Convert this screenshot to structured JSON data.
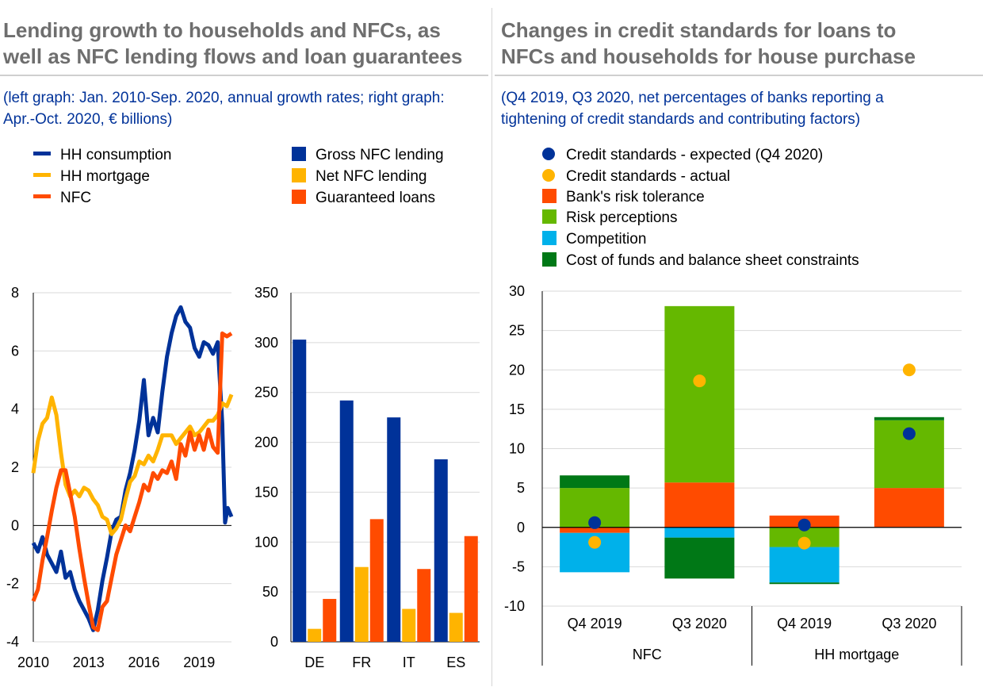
{
  "left_panel": {
    "title_line1": "Lending growth to households and NFCs, as",
    "title_line2": "well as NFC lending flows and loan guarantees",
    "subtitle_line1": "(left graph: Jan. 2010-Sep. 2020, annual growth rates; right graph:",
    "subtitle_line2": "Apr.-Oct. 2020, € billions)"
  },
  "right_panel": {
    "title_line1": "Changes in credit standards for loans to",
    "title_line2": "NFCs and households for house purchase",
    "subtitle_line1": "(Q4 2019, Q3 2020, net percentages of banks reporting a",
    "subtitle_line2": "tightening of credit standards and contributing factors)"
  },
  "colors": {
    "navy": "#003299",
    "yellow": "#ffb400",
    "orange": "#ff4b00",
    "lightgreen": "#65b800",
    "cyan": "#00b1ea",
    "darkgreen": "#007816"
  },
  "chart_data": [
    {
      "type": "line",
      "title": "Lending growth to households and NFCs",
      "xlabel": "",
      "ylabel": "",
      "ylim": [
        -4,
        8
      ],
      "xlim": [
        2010.0,
        2020.75
      ],
      "x_tick_labels": [
        "2010",
        "2013",
        "2016",
        "2019"
      ],
      "x_tick_values": [
        2010,
        2013,
        2016,
        2019
      ],
      "y_ticks": [
        -4,
        -2,
        0,
        2,
        4,
        6,
        8
      ],
      "legend": [
        "HH consumption",
        "HH mortgage",
        "NFC"
      ],
      "series": [
        {
          "name": "HH consumption",
          "color": "#003299",
          "x": [
            2010.0,
            2010.25,
            2010.5,
            2010.75,
            2011.0,
            2011.25,
            2011.5,
            2011.75,
            2012.0,
            2012.25,
            2012.5,
            2012.75,
            2013.0,
            2013.25,
            2013.5,
            2013.75,
            2014.0,
            2014.25,
            2014.5,
            2014.75,
            2015.0,
            2015.25,
            2015.5,
            2015.75,
            2016.0,
            2016.25,
            2016.5,
            2016.75,
            2017.0,
            2017.25,
            2017.5,
            2017.75,
            2018.0,
            2018.25,
            2018.5,
            2018.75,
            2019.0,
            2019.25,
            2019.5,
            2019.75,
            2020.0,
            2020.25,
            2020.4,
            2020.55,
            2020.75
          ],
          "values": [
            -0.6,
            -0.9,
            -0.4,
            -1.0,
            -1.3,
            -1.6,
            -0.9,
            -1.8,
            -1.6,
            -2.2,
            -2.6,
            -2.9,
            -3.2,
            -3.6,
            -2.9,
            -1.9,
            -1.1,
            -0.2,
            0.2,
            0.3,
            1.2,
            1.8,
            2.6,
            3.6,
            5.0,
            3.1,
            3.7,
            3.2,
            4.6,
            5.8,
            6.6,
            7.2,
            7.5,
            7.0,
            6.8,
            6.1,
            5.8,
            6.3,
            6.2,
            5.9,
            6.3,
            3.5,
            0.1,
            0.6,
            0.3
          ]
        },
        {
          "name": "HH mortgage",
          "color": "#ffb400",
          "x": [
            2010.0,
            2010.25,
            2010.5,
            2010.75,
            2011.0,
            2011.25,
            2011.5,
            2011.75,
            2012.0,
            2012.25,
            2012.5,
            2012.75,
            2013.0,
            2013.25,
            2013.5,
            2013.75,
            2014.0,
            2014.25,
            2014.5,
            2014.75,
            2015.0,
            2015.25,
            2015.5,
            2015.75,
            2016.0,
            2016.25,
            2016.5,
            2016.75,
            2017.0,
            2017.25,
            2017.5,
            2017.75,
            2018.0,
            2018.25,
            2018.5,
            2018.75,
            2019.0,
            2019.25,
            2019.5,
            2019.75,
            2020.0,
            2020.25,
            2020.5,
            2020.75
          ],
          "values": [
            1.8,
            2.9,
            3.5,
            3.7,
            4.4,
            3.8,
            2.5,
            1.4,
            1.0,
            1.2,
            1.0,
            1.3,
            1.2,
            0.9,
            0.7,
            0.3,
            0.2,
            -0.3,
            -0.1,
            0.2,
            0.9,
            1.5,
            1.7,
            2.2,
            2.1,
            2.4,
            2.2,
            2.6,
            3.1,
            3.1,
            3.1,
            2.8,
            3.0,
            3.2,
            3.4,
            3.1,
            3.2,
            3.4,
            3.6,
            3.6,
            3.8,
            4.2,
            4.1,
            4.5
          ]
        },
        {
          "name": "NFC",
          "color": "#ff4b00",
          "x": [
            2010.0,
            2010.25,
            2010.5,
            2010.75,
            2011.0,
            2011.25,
            2011.5,
            2011.75,
            2012.0,
            2012.25,
            2012.5,
            2012.75,
            2013.0,
            2013.25,
            2013.5,
            2013.75,
            2014.0,
            2014.25,
            2014.5,
            2014.75,
            2015.0,
            2015.25,
            2015.5,
            2015.75,
            2016.0,
            2016.25,
            2016.5,
            2016.75,
            2017.0,
            2017.25,
            2017.5,
            2017.75,
            2018.0,
            2018.25,
            2018.5,
            2018.75,
            2019.0,
            2019.25,
            2019.5,
            2019.75,
            2020.0,
            2020.25,
            2020.5,
            2020.75
          ],
          "values": [
            -2.6,
            -2.2,
            -1.2,
            -0.4,
            0.5,
            1.3,
            1.9,
            1.9,
            1.1,
            0.3,
            -0.8,
            -1.8,
            -2.7,
            -3.5,
            -3.6,
            -2.8,
            -2.6,
            -1.8,
            -1.0,
            -0.5,
            0.0,
            -0.2,
            0.3,
            0.8,
            1.4,
            1.2,
            1.8,
            1.6,
            1.9,
            1.8,
            2.2,
            1.6,
            2.8,
            2.4,
            3.2,
            2.6,
            3.1,
            2.6,
            3.3,
            2.7,
            2.5,
            6.6,
            6.5,
            6.6
          ]
        }
      ]
    },
    {
      "type": "bar",
      "title": "NFC lending flows and loan guarantees",
      "categories": [
        "DE",
        "FR",
        "IT",
        "ES"
      ],
      "ylim": [
        0,
        350
      ],
      "y_ticks": [
        0,
        50,
        100,
        150,
        200,
        250,
        300,
        350
      ],
      "series": [
        {
          "name": "Gross NFC lending",
          "color": "#003299",
          "values": [
            303,
            242,
            225,
            183
          ]
        },
        {
          "name": "Net NFC lending",
          "color": "#ffb400",
          "values": [
            13,
            75,
            33,
            29
          ]
        },
        {
          "name": "Guaranteed loans",
          "color": "#ff4b00",
          "values": [
            43,
            123,
            73,
            106
          ]
        }
      ]
    },
    {
      "type": "bar",
      "stacked": true,
      "title": "Changes in credit standards for loans to NFCs and households for house purchase",
      "ylim": [
        -10,
        30
      ],
      "y_ticks": [
        -10,
        -5,
        0,
        5,
        10,
        15,
        20,
        25,
        30
      ],
      "categories": [
        "Q4 2019",
        "Q3 2020",
        "Q4 2019",
        "Q3 2020"
      ],
      "groups": [
        {
          "label": "NFC",
          "categories": [
            "Q4 2019",
            "Q3 2020"
          ]
        },
        {
          "label": "HH mortgage",
          "categories": [
            "Q4 2019",
            "Q3 2020"
          ]
        }
      ],
      "series": [
        {
          "name": "Bank's risk tolerance",
          "color": "#ff4b00",
          "values": [
            -0.7,
            5.7,
            1.5,
            5.0
          ]
        },
        {
          "name": "Risk perceptions",
          "color": "#65b800",
          "values": [
            5.0,
            22.4,
            -2.5,
            8.6
          ]
        },
        {
          "name": "Competition",
          "color": "#00b1ea",
          "values": [
            -5.0,
            -1.3,
            -4.5,
            0.0
          ]
        },
        {
          "name": "Cost of funds and balance sheet constraints",
          "color": "#007816",
          "values": [
            1.6,
            -5.2,
            -0.2,
            0.4
          ]
        }
      ],
      "markers": [
        {
          "name": "Credit standards - expected (Q4 2020)",
          "color": "#003299",
          "values": [
            0.6,
            null,
            0.3,
            11.9
          ]
        },
        {
          "name": "Credit standards - actual",
          "color": "#ffb400",
          "values": [
            -1.9,
            18.6,
            -2.0,
            20.0
          ]
        }
      ]
    }
  ]
}
